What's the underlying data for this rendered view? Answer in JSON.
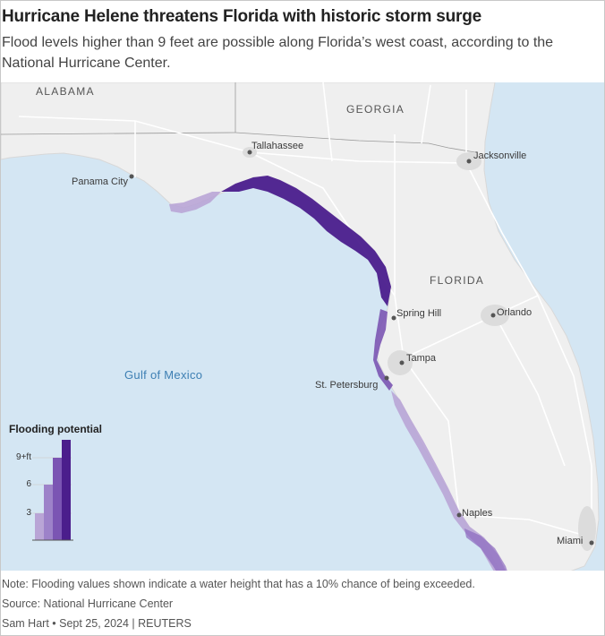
{
  "title": "Hurricane Helene threatens Florida with historic storm surge",
  "subtitle": "Flood levels higher than 9 feet are possible along Florida’s west coast, according to the National Hurricane Center.",
  "map": {
    "colors": {
      "water": "#d4e6f3",
      "land": "#efefef",
      "surge_high": "#4b1e8c",
      "surge_mid": "#7b55b3",
      "surge_low": "#b9a5d6"
    },
    "states": {
      "alabama": "ALABAMA",
      "georgia": "GEORGIA",
      "florida": "FLORIDA"
    },
    "water_label": "Gulf of Mexico",
    "cities": {
      "tallahassee": "Tallahassee",
      "panama_city": "Panama City",
      "jacksonville": "Jacksonville",
      "spring_hill": "Spring Hill",
      "orlando": "Orlando",
      "tampa": "Tampa",
      "st_petersburg": "St. Petersburg",
      "naples": "Naples",
      "miami": "Miami"
    }
  },
  "legend": {
    "title": "Flooding potential",
    "ticks": [
      "9+ft",
      "6",
      "3"
    ],
    "levels": [
      3,
      6,
      9
    ]
  },
  "footer": {
    "note": "Note: Flooding values shown indicate a water height that has a 10% chance of being exceeded.",
    "source": "Source: National Hurricane Center",
    "credit": "Sam Hart • Sept 25, 2024 | REUTERS"
  }
}
